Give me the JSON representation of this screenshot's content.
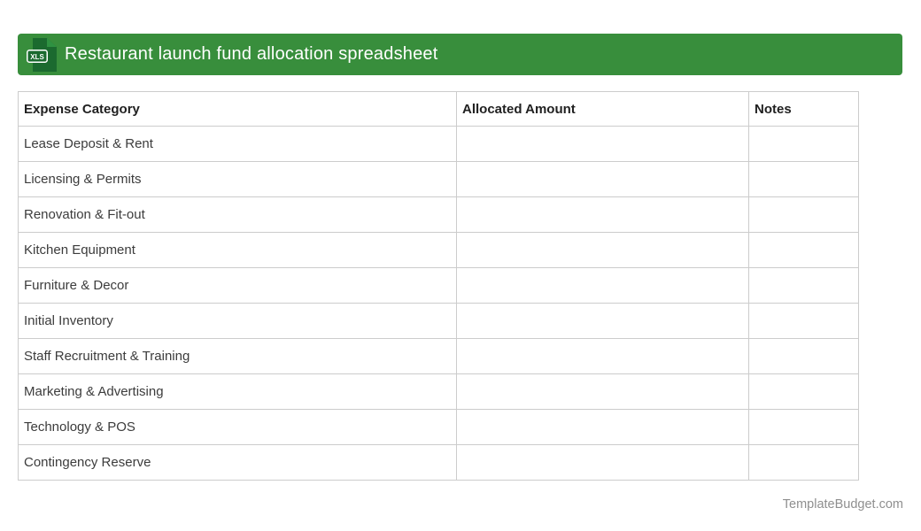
{
  "colors": {
    "header_bar": "#388e3c",
    "header_text": "#ffffff",
    "icon_document": "#1b6a2f",
    "icon_fold": "#2f9242",
    "table_border": "#cccccc",
    "column_header_text": "#212121",
    "cell_text": "#3c3c3c",
    "footer_text": "#8f8f8f"
  },
  "header": {
    "title": "Restaurant launch fund allocation spreadsheet",
    "file_icon_label": "XLS"
  },
  "table": {
    "columns": [
      "Expense Category",
      "Allocated Amount",
      "Notes"
    ],
    "rows": [
      {
        "category": "Lease Deposit & Rent",
        "amount": "",
        "notes": ""
      },
      {
        "category": "Licensing & Permits",
        "amount": "",
        "notes": ""
      },
      {
        "category": "Renovation & Fit-out",
        "amount": "",
        "notes": ""
      },
      {
        "category": "Kitchen Equipment",
        "amount": "",
        "notes": ""
      },
      {
        "category": "Furniture & Decor",
        "amount": "",
        "notes": ""
      },
      {
        "category": "Initial Inventory",
        "amount": "",
        "notes": ""
      },
      {
        "category": "Staff Recruitment & Training",
        "amount": "",
        "notes": ""
      },
      {
        "category": "Marketing & Advertising",
        "amount": "",
        "notes": ""
      },
      {
        "category": "Technology & POS",
        "amount": "",
        "notes": ""
      },
      {
        "category": "Contingency Reserve",
        "amount": "",
        "notes": ""
      }
    ]
  },
  "footer": {
    "site_name": "TemplateBudget.com"
  }
}
